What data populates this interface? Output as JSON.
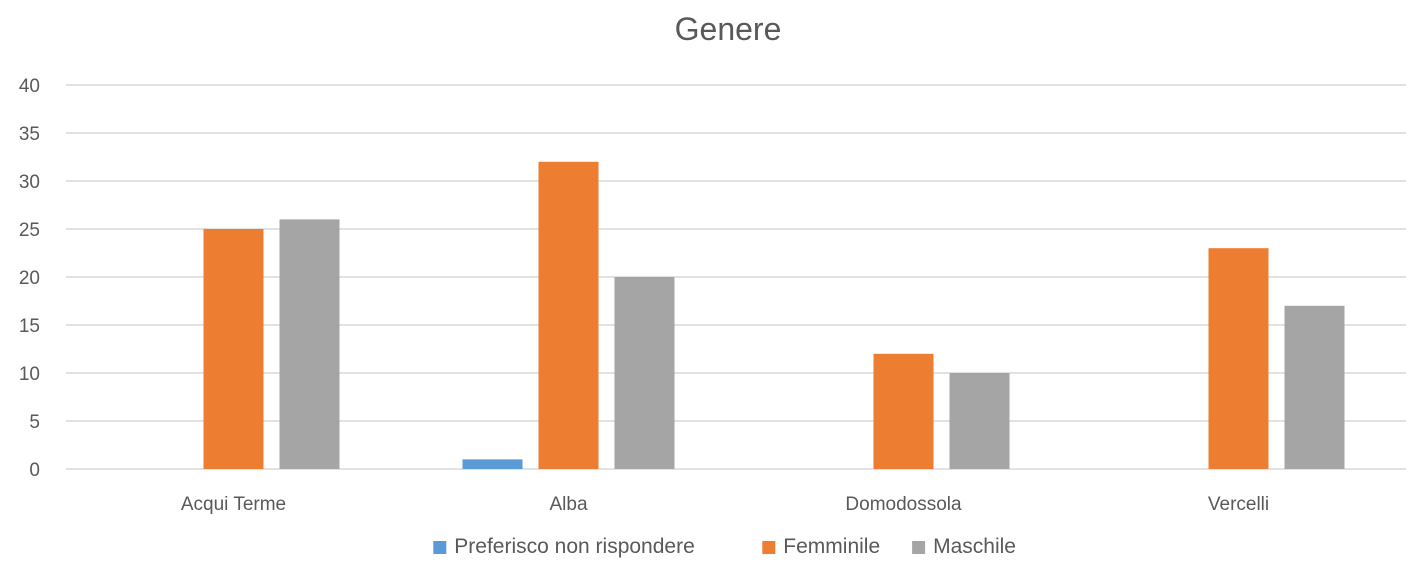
{
  "chart_data": {
    "type": "bar",
    "title": "Genere",
    "categories": [
      "Acqui Terme",
      "Alba",
      "Domodossola",
      "Vercelli"
    ],
    "series": [
      {
        "name": "Preferisco non rispondere",
        "color": "#5b9bd5",
        "values": [
          0,
          1,
          0,
          0
        ]
      },
      {
        "name": "Femminile",
        "color": "#ed7d31",
        "values": [
          25,
          32,
          12,
          23
        ]
      },
      {
        "name": "Maschile",
        "color": "#a5a5a5",
        "values": [
          26,
          20,
          10,
          17
        ]
      }
    ],
    "xlabel": "",
    "ylabel": "",
    "ylim": [
      0,
      40
    ],
    "yticks": [
      0,
      5,
      10,
      15,
      20,
      25,
      30,
      35,
      40
    ],
    "grid": true,
    "legend_position": "bottom"
  }
}
